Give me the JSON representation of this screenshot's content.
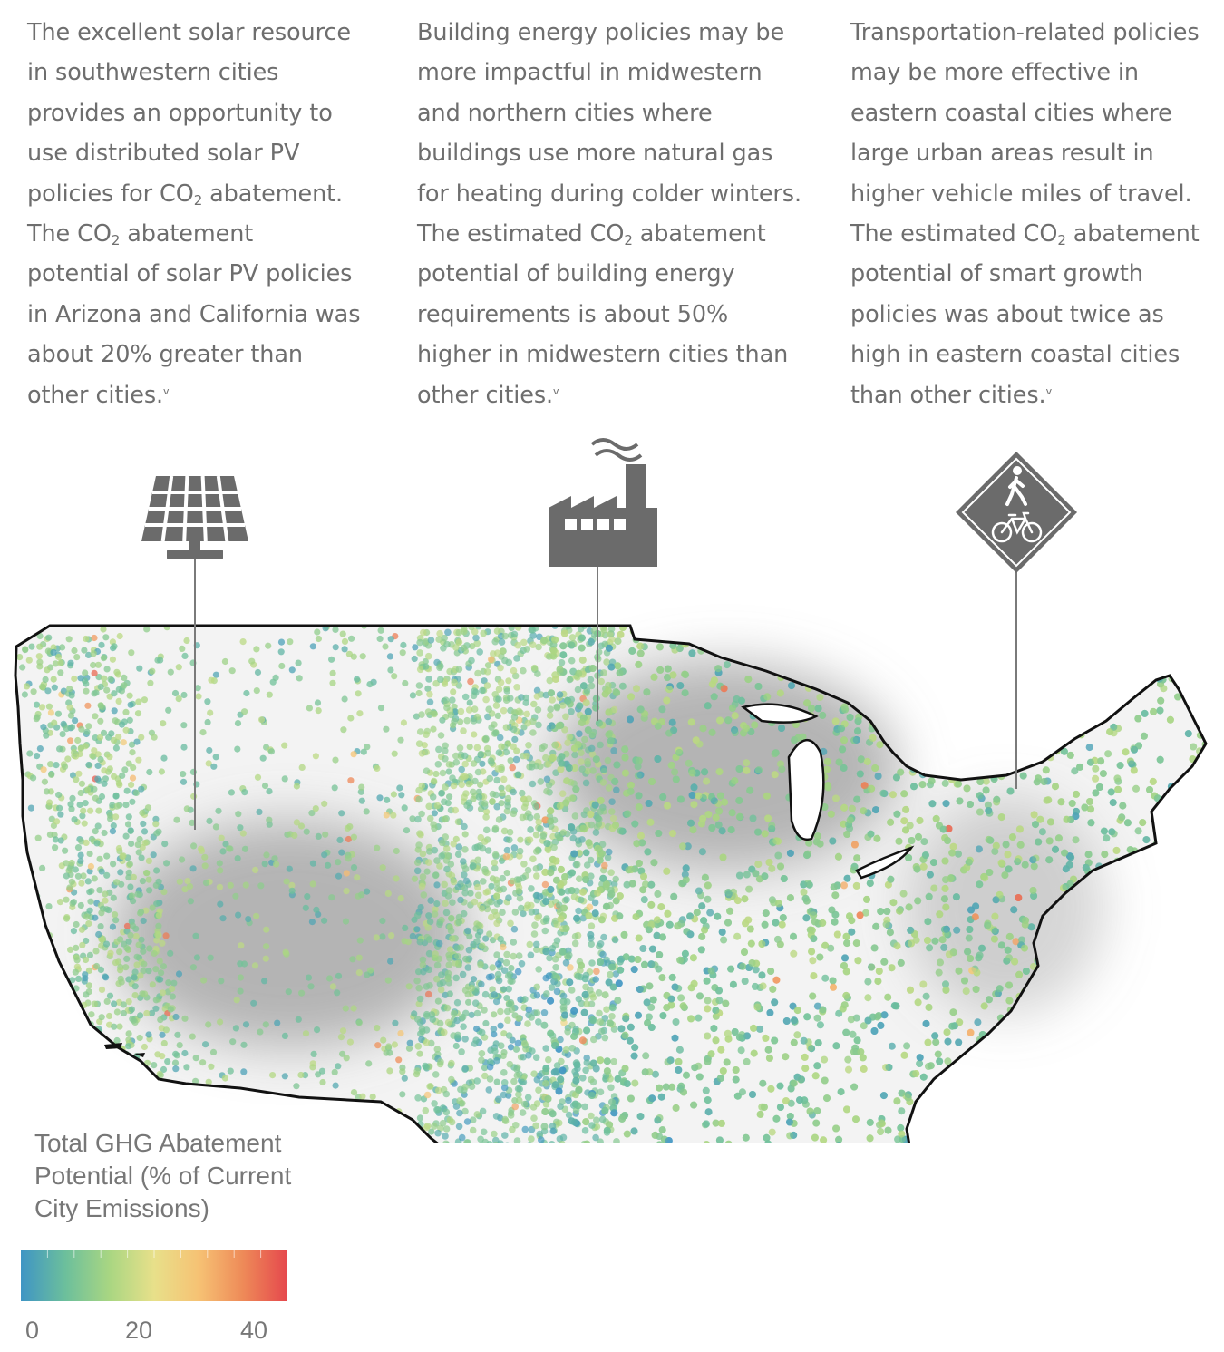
{
  "columns": [
    {
      "lines": [
        {
          "parts": [
            {
              "t": "The excellent solar resource"
            }
          ]
        },
        {
          "parts": [
            {
              "t": "in southwestern cities"
            }
          ]
        },
        {
          "parts": [
            {
              "t": "provides an opportunity to"
            }
          ]
        },
        {
          "parts": [
            {
              "t": "use distributed solar PV"
            }
          ]
        },
        {
          "parts": [
            {
              "t": "policies for CO"
            },
            {
              "sub": "2"
            },
            {
              "t": " abatement."
            }
          ]
        },
        {
          "parts": [
            {
              "t": "The CO"
            },
            {
              "sub": "2"
            },
            {
              "t": " abatement"
            }
          ]
        },
        {
          "parts": [
            {
              "t": "potential of solar PV policies"
            }
          ]
        },
        {
          "parts": [
            {
              "t": "in Arizona and California was"
            }
          ]
        },
        {
          "parts": [
            {
              "t": "about 20% greater than"
            }
          ]
        },
        {
          "parts": [
            {
              "t": "other cities."
            },
            {
              "sup": "v"
            }
          ]
        }
      ]
    },
    {
      "lines": [
        {
          "parts": [
            {
              "t": "Building energy policies may be"
            }
          ]
        },
        {
          "parts": [
            {
              "t": "more impactful in midwestern"
            }
          ]
        },
        {
          "parts": [
            {
              "t": "and northern cities where"
            }
          ]
        },
        {
          "parts": [
            {
              "t": "buildings use more natural gas"
            }
          ]
        },
        {
          "parts": [
            {
              "t": "for heating during colder winters."
            }
          ]
        },
        {
          "parts": [
            {
              "t": "The estimated CO"
            },
            {
              "sub": "2"
            },
            {
              "t": " abatement"
            }
          ]
        },
        {
          "parts": [
            {
              "t": "potential of building energy"
            }
          ]
        },
        {
          "parts": [
            {
              "t": "requirements is about 50%"
            }
          ]
        },
        {
          "parts": [
            {
              "t": "higher in midwestern cities than"
            }
          ]
        },
        {
          "parts": [
            {
              "t": "other cities."
            },
            {
              "sup": "v"
            }
          ]
        }
      ]
    },
    {
      "lines": [
        {
          "parts": [
            {
              "t": "Transportation-related policies"
            }
          ]
        },
        {
          "parts": [
            {
              "t": "may be more effective in"
            }
          ]
        },
        {
          "parts": [
            {
              "t": "eastern coastal cities where"
            }
          ]
        },
        {
          "parts": [
            {
              "t": "large urban areas result in"
            }
          ]
        },
        {
          "parts": [
            {
              "t": "higher vehicle miles of travel."
            }
          ]
        },
        {
          "parts": [
            {
              "t": "The estimated CO"
            },
            {
              "sub": "2"
            },
            {
              "t": " abatement"
            }
          ]
        },
        {
          "parts": [
            {
              "t": "potential of smart growth"
            }
          ]
        },
        {
          "parts": [
            {
              "t": "policies was about twice as"
            }
          ]
        },
        {
          "parts": [
            {
              "t": "high in eastern coastal cities"
            }
          ]
        },
        {
          "parts": [
            {
              "t": "than other cities."
            },
            {
              "sup": "v"
            }
          ]
        }
      ]
    }
  ],
  "icons": [
    "solar-panel-icon",
    "factory-icon",
    "pedestrian-bicycle-sign-icon"
  ],
  "legend": {
    "title_lines": [
      "Total GHG Abatement",
      "Potential (% of Current",
      "City Emissions)"
    ],
    "ticks": [
      "0",
      "20",
      "40"
    ],
    "range": [
      0,
      45
    ],
    "colors": [
      "#3f95c4",
      "#6cbf9c",
      "#a9d682",
      "#e8e08a",
      "#f6c274",
      "#ee8a58",
      "#e5484d"
    ]
  },
  "colors": {
    "text": "#6e6e6e",
    "icon": "#6b6b6b",
    "map_fill": "#f3f3f3",
    "outline": "#111111",
    "halo": "#8a8a8a"
  }
}
